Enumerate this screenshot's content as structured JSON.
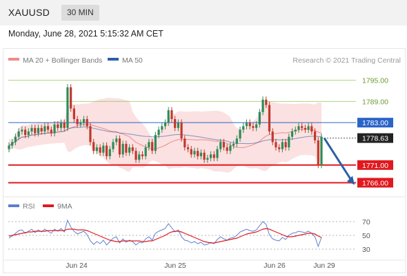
{
  "header": {
    "symbol": "XAUUSD",
    "timeframe": "30 MIN"
  },
  "timestamp": "Monday, June 28, 2021 5:15:32 AM CET",
  "credit": "Research © 2021 Trading Central",
  "colors": {
    "green_level": "#8bc34a",
    "blue_level": "#2a64c8",
    "red_level": "#e0191f",
    "current_price": "#222222",
    "bollinger": "#f8c8c8",
    "ma20": "#f08a8a",
    "ma50": "#2d5ea8",
    "rsi": "#5b7fd0",
    "ma9": "#e0191f",
    "candle_up": "#2e8b57",
    "candle_down": "#c0392b",
    "arrow": "#2d5ea8"
  },
  "chart_data": [
    {
      "type": "candlestick",
      "legend": [
        {
          "name": "MA 20 + Bollinger Bands",
          "color": "#f08a8a"
        },
        {
          "name": "MA 50",
          "color": "#2d5ea8"
        }
      ],
      "ylim": [
        1762,
        1799
      ],
      "levels": [
        {
          "value": 1795.0,
          "label": "1795.00",
          "color": "#8bc34a",
          "kind": "resistance"
        },
        {
          "value": 1789.0,
          "label": "1789.00",
          "color": "#8bc34a",
          "kind": "resistance"
        },
        {
          "value": 1783.0,
          "label": "1783.00",
          "color": "#2a64c8",
          "kind": "pivot"
        },
        {
          "value": 1778.63,
          "label": "1778.63",
          "color": "#222222",
          "kind": "current"
        },
        {
          "value": 1771.0,
          "label": "1771.00",
          "color": "#e0191f",
          "kind": "support"
        },
        {
          "value": 1766.0,
          "label": "1766.00",
          "color": "#e0191f",
          "kind": "support"
        }
      ],
      "arrow": {
        "from": 1778.63,
        "to": 1766.0,
        "direction": "down"
      },
      "x_ticks": [
        "Jun 24",
        "Jun 25",
        "Jun 26",
        "Jun 29"
      ],
      "closes": [
        1776.5,
        1777.5,
        1779.0,
        1780.5,
        1781.0,
        1779.5,
        1780.5,
        1781.5,
        1780.0,
        1781.5,
        1780.5,
        1782.0,
        1781.0,
        1780.0,
        1782.5,
        1781.5,
        1783.0,
        1781.5,
        1793.0,
        1787.0,
        1784.0,
        1782.5,
        1783.0,
        1784.0,
        1782.0,
        1777.5,
        1775.0,
        1776.0,
        1774.5,
        1776.5,
        1773.5,
        1775.5,
        1777.5,
        1778.5,
        1774.0,
        1777.0,
        1774.5,
        1776.0,
        1775.0,
        1772.5,
        1774.0,
        1773.5,
        1776.0,
        1777.5,
        1775.0,
        1779.5,
        1781.0,
        1782.0,
        1783.0,
        1786.5,
        1784.0,
        1781.5,
        1783.0,
        1778.5,
        1776.0,
        1775.5,
        1774.0,
        1775.0,
        1773.5,
        1774.5,
        1772.5,
        1773.0,
        1774.0,
        1773.0,
        1775.5,
        1777.5,
        1776.0,
        1775.0,
        1776.5,
        1777.0,
        1778.5,
        1781.0,
        1782.0,
        1783.0,
        1782.0,
        1781.5,
        1782.5,
        1786.0,
        1789.5,
        1788.0,
        1780.5,
        1777.5,
        1776.0,
        1775.5,
        1777.5,
        1776.0,
        1779.0,
        1780.5,
        1781.0,
        1782.0,
        1781.5,
        1781.0,
        1782.0,
        1780.5,
        1778.0,
        1771.0,
        1779.0
      ],
      "opens": [
        1775.5,
        1776.5,
        1777.5,
        1779.0,
        1780.5,
        1781.0,
        1779.5,
        1780.5,
        1781.5,
        1780.0,
        1781.5,
        1780.5,
        1782.0,
        1781.0,
        1780.0,
        1782.5,
        1781.5,
        1783.0,
        1781.5,
        1793.0,
        1787.0,
        1784.0,
        1782.5,
        1783.0,
        1784.0,
        1782.0,
        1777.5,
        1775.0,
        1776.0,
        1774.5,
        1776.5,
        1773.5,
        1775.5,
        1777.5,
        1778.5,
        1774.0,
        1777.0,
        1774.5,
        1776.0,
        1775.0,
        1772.5,
        1774.0,
        1773.5,
        1776.0,
        1777.5,
        1775.0,
        1779.5,
        1781.0,
        1782.0,
        1783.0,
        1786.5,
        1784.0,
        1781.5,
        1783.0,
        1778.5,
        1776.0,
        1775.5,
        1774.0,
        1775.0,
        1773.5,
        1774.5,
        1772.5,
        1773.0,
        1774.0,
        1773.0,
        1775.5,
        1777.5,
        1776.0,
        1775.0,
        1776.5,
        1777.0,
        1778.5,
        1781.0,
        1782.0,
        1783.0,
        1782.0,
        1781.5,
        1782.5,
        1786.0,
        1789.5,
        1788.0,
        1780.5,
        1777.5,
        1776.0,
        1775.5,
        1777.5,
        1776.0,
        1779.0,
        1780.5,
        1781.0,
        1782.0,
        1781.5,
        1781.0,
        1782.0,
        1780.5,
        1778.0,
        1771.0
      ]
    },
    {
      "type": "line",
      "legend": [
        {
          "name": "RSI",
          "color": "#5b7fd0"
        },
        {
          "name": "9MA",
          "color": "#e0191f"
        }
      ],
      "ylim": [
        20,
        80
      ],
      "y_ticks": [
        70,
        50,
        30
      ],
      "x_ticks": [
        "Jun 24",
        "Jun 25",
        "Jun 26",
        "Jun 29"
      ],
      "series": [
        {
          "name": "RSI",
          "values": [
            46,
            49,
            53,
            57,
            58,
            53,
            56,
            59,
            54,
            58,
            55,
            59,
            56,
            53,
            59,
            56,
            60,
            55,
            72,
            62,
            56,
            52,
            54,
            56,
            51,
            42,
            37,
            41,
            38,
            43,
            36,
            41,
            46,
            48,
            39,
            45,
            40,
            43,
            41,
            36,
            40,
            39,
            45,
            48,
            43,
            53,
            56,
            58,
            60,
            67,
            61,
            55,
            58,
            48,
            43,
            42,
            39,
            41,
            38,
            40,
            36,
            37,
            40,
            38,
            44,
            48,
            45,
            43,
            46,
            47,
            50,
            55,
            57,
            59,
            57,
            56,
            58,
            64,
            70,
            66,
            51,
            45,
            43,
            42,
            47,
            44,
            50,
            53,
            54,
            56,
            55,
            54,
            56,
            53,
            48,
            34,
            47
          ]
        },
        {
          "name": "9MA",
          "values": [
            49,
            50,
            51,
            52,
            53,
            54,
            55,
            55,
            56,
            56,
            56,
            56,
            57,
            57,
            57,
            57,
            57,
            57,
            59,
            59,
            59,
            58,
            58,
            58,
            57,
            55,
            53,
            51,
            49,
            47,
            45,
            43,
            42,
            41,
            41,
            42,
            42,
            42,
            42,
            42,
            42,
            41,
            41,
            42,
            42,
            44,
            46,
            48,
            50,
            53,
            55,
            56,
            56,
            55,
            53,
            51,
            49,
            47,
            45,
            43,
            41,
            40,
            39,
            39,
            40,
            41,
            42,
            43,
            44,
            45,
            46,
            48,
            50,
            52,
            53,
            54,
            55,
            57,
            59,
            60,
            59,
            57,
            55,
            53,
            51,
            49,
            48,
            48,
            49,
            50,
            51,
            52,
            53,
            53,
            52,
            49,
            47
          ]
        }
      ]
    }
  ]
}
